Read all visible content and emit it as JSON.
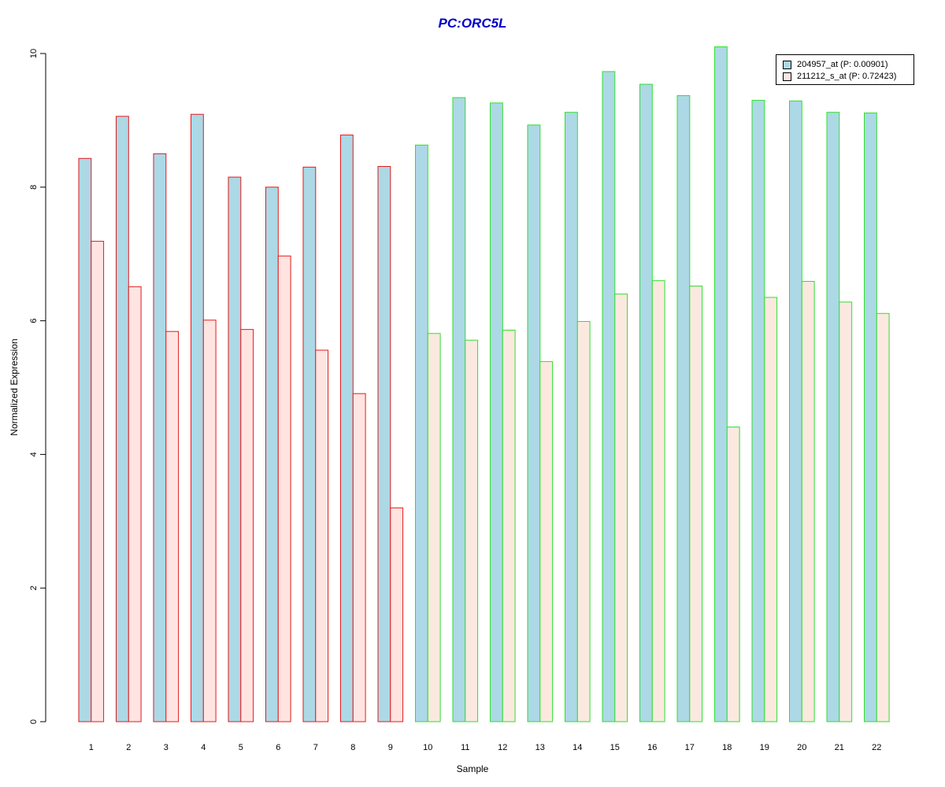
{
  "chart_data": {
    "type": "bar",
    "title": "PC:ORC5L",
    "xlabel": "Sample",
    "ylabel": "Normalized Expression",
    "categories": [
      "1",
      "2",
      "3",
      "4",
      "5",
      "6",
      "7",
      "8",
      "9",
      "10",
      "11",
      "12",
      "13",
      "14",
      "15",
      "16",
      "17",
      "18",
      "19",
      "20",
      "21",
      "22"
    ],
    "ylim": [
      0,
      10
    ],
    "yticks": [
      "0",
      "2",
      "4",
      "6",
      "8",
      "10"
    ],
    "series": [
      {
        "name": "204957_at (P: 0.00901)",
        "values": [
          8.43,
          9.06,
          8.5,
          9.09,
          8.15,
          8.0,
          8.3,
          8.78,
          8.31,
          8.63,
          9.34,
          9.26,
          8.93,
          9.12,
          9.73,
          9.54,
          9.37,
          10.1,
          9.3,
          9.29,
          9.12,
          9.11
        ]
      },
      {
        "name": "211212_s_at (P: 0.72423)",
        "values": [
          7.19,
          6.51,
          5.84,
          6.01,
          5.87,
          6.97,
          5.56,
          4.91,
          3.2,
          5.81,
          5.71,
          5.86,
          5.39,
          5.99,
          6.4,
          6.6,
          6.52,
          4.41,
          6.35,
          6.59,
          6.28,
          6.11
        ]
      }
    ],
    "groups": [
      {
        "range": [
          1,
          9
        ],
        "border_color": "#e31a1c"
      },
      {
        "range": [
          10,
          22
        ],
        "border_color": "#2ee02e"
      }
    ],
    "fill_colors": [
      "#add8e6",
      "#ffe4e1"
    ],
    "fill_colors_alt": [
      "#add8e6",
      "#fbe9e0"
    ],
    "title_color": "#0000cc",
    "legend_position": "top-right",
    "grid": false
  }
}
